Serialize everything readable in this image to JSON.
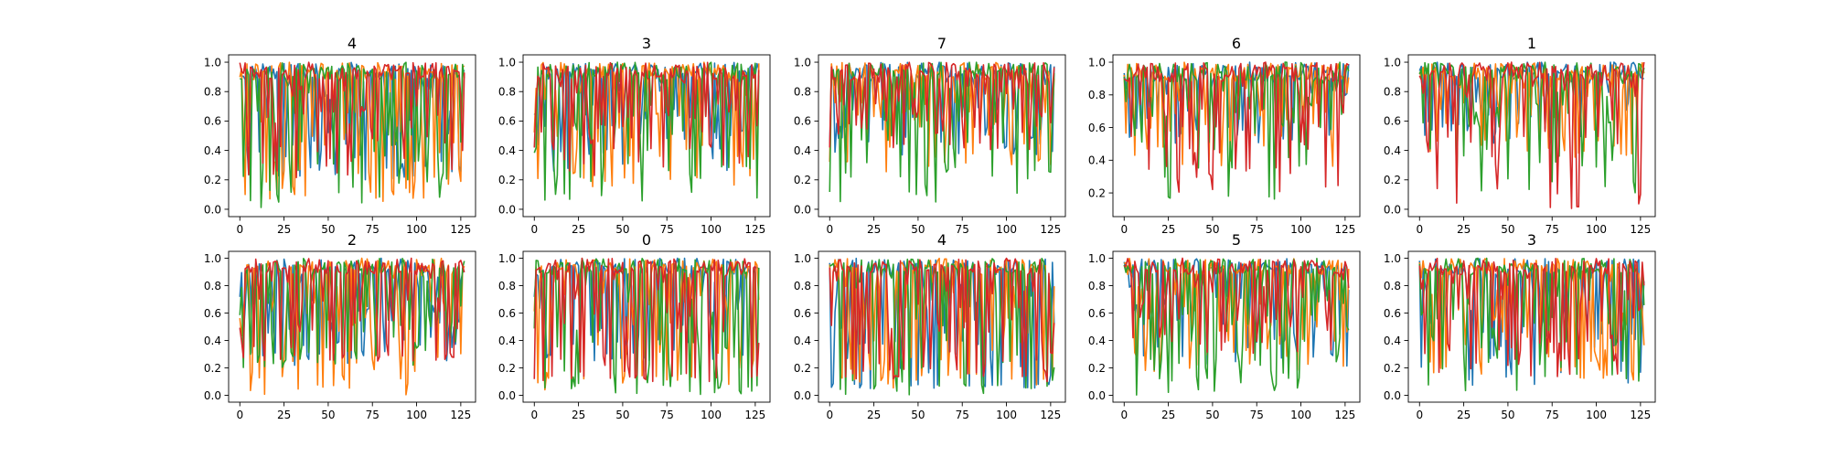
{
  "chart_data": [
    {
      "type": "line",
      "title": "4",
      "x_range": [
        0,
        127
      ],
      "xticks": [
        "0",
        "25",
        "50",
        "75",
        "100",
        "125"
      ],
      "ylim": [
        0,
        1
      ],
      "yticks": [
        "0.0",
        "0.2",
        "0.4",
        "0.6",
        "0.8",
        "1.0"
      ],
      "series": [
        {
          "seed": 11,
          "low": 0.2,
          "floor": 0.3,
          "color": "#1f77b4"
        },
        {
          "seed": 12,
          "low": 0.05,
          "floor": 0.2,
          "color": "#ff7f0e"
        },
        {
          "seed": 13,
          "low": 0.0,
          "floor": 0.25,
          "color": "#2ca02c"
        },
        {
          "seed": 14,
          "low": 0.18,
          "floor": 0.4,
          "color": "#d62728"
        }
      ]
    },
    {
      "type": "line",
      "title": "3",
      "x_range": [
        0,
        127
      ],
      "xticks": [
        "0",
        "25",
        "50",
        "75",
        "100",
        "125"
      ],
      "ylim": [
        0,
        1
      ],
      "yticks": [
        "0.0",
        "0.2",
        "0.4",
        "0.6",
        "0.8",
        "1.0"
      ],
      "series": [
        {
          "seed": 21,
          "low": 0.25,
          "floor": 0.5,
          "color": "#1f77b4"
        },
        {
          "seed": 22,
          "low": 0.15,
          "floor": 0.4,
          "color": "#ff7f0e"
        },
        {
          "seed": 23,
          "low": 0.03,
          "floor": 0.3,
          "color": "#2ca02c"
        },
        {
          "seed": 24,
          "low": 0.22,
          "floor": 0.4,
          "color": "#d62728"
        }
      ]
    },
    {
      "type": "line",
      "title": "7",
      "x_range": [
        0,
        127
      ],
      "xticks": [
        "0",
        "25",
        "50",
        "75",
        "100",
        "125"
      ],
      "ylim": [
        0,
        1
      ],
      "yticks": [
        "0.0",
        "0.2",
        "0.4",
        "0.6",
        "0.8",
        "1.0"
      ],
      "series": [
        {
          "seed": 31,
          "low": 0.35,
          "floor": 0.55,
          "color": "#1f77b4"
        },
        {
          "seed": 32,
          "low": 0.25,
          "floor": 0.5,
          "color": "#ff7f0e"
        },
        {
          "seed": 33,
          "low": 0.05,
          "floor": 0.4,
          "color": "#2ca02c"
        },
        {
          "seed": 34,
          "low": 0.4,
          "floor": 0.6,
          "color": "#d62728"
        }
      ]
    },
    {
      "type": "line",
      "title": "6",
      "x_range": [
        0,
        127
      ],
      "xticks": [
        "0",
        "25",
        "50",
        "75",
        "100",
        "125"
      ],
      "ylim": [
        0.1,
        1.0
      ],
      "yticks": [
        "0.2",
        "0.4",
        "0.6",
        "0.8",
        "1.0"
      ],
      "series": [
        {
          "seed": 41,
          "low": 0.5,
          "floor": 0.65,
          "color": "#1f77b4"
        },
        {
          "seed": 42,
          "low": 0.35,
          "floor": 0.55,
          "color": "#ff7f0e"
        },
        {
          "seed": 43,
          "low": 0.15,
          "floor": 0.6,
          "color": "#2ca02c"
        },
        {
          "seed": 44,
          "low": 0.2,
          "floor": 0.5,
          "color": "#d62728"
        }
      ]
    },
    {
      "type": "line",
      "title": "1",
      "x_range": [
        0,
        127
      ],
      "xticks": [
        "0",
        "25",
        "50",
        "75",
        "100",
        "125"
      ],
      "ylim": [
        0,
        1
      ],
      "yticks": [
        "0.0",
        "0.2",
        "0.4",
        "0.6",
        "0.8",
        "1.0"
      ],
      "series": [
        {
          "seed": 51,
          "low": 0.45,
          "floor": 0.6,
          "color": "#1f77b4"
        },
        {
          "seed": 52,
          "low": 0.35,
          "floor": 0.5,
          "color": "#ff7f0e"
        },
        {
          "seed": 53,
          "low": 0.1,
          "floor": 0.5,
          "color": "#2ca02c"
        },
        {
          "seed": 54,
          "low": 0.0,
          "floor": 0.45,
          "color": "#d62728"
        }
      ]
    },
    {
      "type": "line",
      "title": "2",
      "x_range": [
        0,
        127
      ],
      "xticks": [
        "0",
        "25",
        "50",
        "75",
        "100",
        "125"
      ],
      "ylim": [
        0,
        1
      ],
      "yticks": [
        "0.0",
        "0.2",
        "0.4",
        "0.6",
        "0.8",
        "1.0"
      ],
      "series": [
        {
          "seed": 61,
          "low": 0.2,
          "floor": 0.4,
          "color": "#1f77b4"
        },
        {
          "seed": 62,
          "low": 0.0,
          "floor": 0.2,
          "color": "#ff7f0e"
        },
        {
          "seed": 63,
          "low": 0.2,
          "floor": 0.35,
          "color": "#2ca02c"
        },
        {
          "seed": 64,
          "low": 0.25,
          "floor": 0.3,
          "color": "#d62728"
        }
      ]
    },
    {
      "type": "line",
      "title": "0",
      "x_range": [
        0,
        127
      ],
      "xticks": [
        "0",
        "25",
        "50",
        "75",
        "100",
        "125"
      ],
      "ylim": [
        0,
        1
      ],
      "yticks": [
        "0.0",
        "0.2",
        "0.4",
        "0.6",
        "0.8",
        "1.0"
      ],
      "series": [
        {
          "seed": 71,
          "low": 0.25,
          "floor": 0.3,
          "color": "#1f77b4"
        },
        {
          "seed": 72,
          "low": 0.03,
          "floor": 0.2,
          "color": "#ff7f0e"
        },
        {
          "seed": 73,
          "low": 0.0,
          "floor": 0.1,
          "color": "#2ca02c"
        },
        {
          "seed": 74,
          "low": 0.1,
          "floor": 0.15,
          "color": "#d62728"
        }
      ]
    },
    {
      "type": "line",
      "title": "4",
      "x_range": [
        0,
        127
      ],
      "xticks": [
        "0",
        "25",
        "50",
        "75",
        "100",
        "125"
      ],
      "ylim": [
        0,
        1
      ],
      "yticks": [
        "0.0",
        "0.2",
        "0.4",
        "0.6",
        "0.8",
        "1.0"
      ],
      "series": [
        {
          "seed": 81,
          "low": 0.05,
          "floor": 0.1,
          "color": "#1f77b4"
        },
        {
          "seed": 82,
          "low": 0.05,
          "floor": 0.15,
          "color": "#ff7f0e"
        },
        {
          "seed": 83,
          "low": 0.0,
          "floor": 0.1,
          "color": "#2ca02c"
        },
        {
          "seed": 84,
          "low": 0.1,
          "floor": 0.2,
          "color": "#d62728"
        }
      ]
    },
    {
      "type": "line",
      "title": "5",
      "x_range": [
        0,
        127
      ],
      "xticks": [
        "0",
        "25",
        "50",
        "75",
        "100",
        "125"
      ],
      "ylim": [
        0,
        1
      ],
      "yticks": [
        "0.0",
        "0.2",
        "0.4",
        "0.6",
        "0.8",
        "1.0"
      ],
      "series": [
        {
          "seed": 91,
          "low": 0.2,
          "floor": 0.45,
          "color": "#1f77b4"
        },
        {
          "seed": 92,
          "low": 0.12,
          "floor": 0.35,
          "color": "#ff7f0e"
        },
        {
          "seed": 93,
          "low": 0.0,
          "floor": 0.3,
          "color": "#2ca02c"
        },
        {
          "seed": 94,
          "low": 0.3,
          "floor": 0.55,
          "color": "#d62728"
        }
      ]
    },
    {
      "type": "line",
      "title": "3",
      "x_range": [
        0,
        127
      ],
      "xticks": [
        "0",
        "25",
        "50",
        "75",
        "100",
        "125"
      ],
      "ylim": [
        0,
        1
      ],
      "yticks": [
        "0.0",
        "0.2",
        "0.4",
        "0.6",
        "0.8",
        "1.0"
      ],
      "series": [
        {
          "seed": 101,
          "low": 0.05,
          "floor": 0.4,
          "color": "#1f77b4"
        },
        {
          "seed": 102,
          "low": 0.1,
          "floor": 0.3,
          "color": "#ff7f0e"
        },
        {
          "seed": 103,
          "low": 0.0,
          "floor": 0.45,
          "color": "#2ca02c"
        },
        {
          "seed": 104,
          "low": 0.1,
          "floor": 0.4,
          "color": "#d62728"
        }
      ]
    }
  ]
}
